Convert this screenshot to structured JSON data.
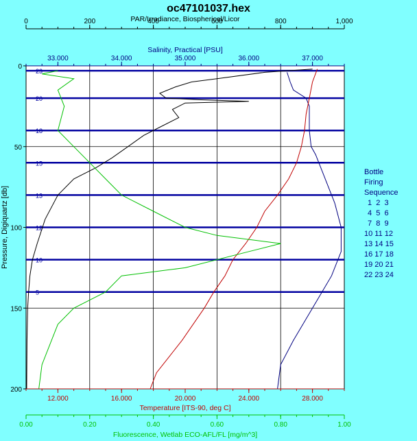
{
  "chart_data": {
    "type": "line",
    "title": "oc47101037.hex",
    "y_axis": {
      "label": "Pressure, Digiquartz [db]",
      "min": 0,
      "max": 200,
      "ticks": [
        "0",
        "50",
        "100",
        "150",
        "200"
      ],
      "inverted": true
    },
    "x_axes": [
      {
        "position": "top-1",
        "label": "PAR/Irradiance, Biospherical/Licor",
        "color": "#000000",
        "min": 0,
        "max": 1000,
        "ticks": [
          "0",
          "200",
          "400",
          "600",
          "800",
          "1,000"
        ]
      },
      {
        "position": "top-2",
        "label": "Salinity, Practical [PSU]",
        "color": "#000080",
        "min": 32.5,
        "max": 37.5,
        "ticks": [
          "33.000",
          "34.000",
          "35.000",
          "36.000",
          "37.000"
        ]
      },
      {
        "position": "bottom-1",
        "label": "Temperature [ITS-90, deg C]",
        "color": "#c00000",
        "min": 10,
        "max": 30,
        "ticks": [
          "12.000",
          "16.000",
          "20.000",
          "24.000",
          "28.000"
        ]
      },
      {
        "position": "bottom-2",
        "label": "Fluorescence, Wetlab ECO-AFL/FL [mg/m^3]",
        "color": "#00c000",
        "min": 0,
        "max": 1.0,
        "ticks": [
          "0.00",
          "0.20",
          "0.40",
          "0.60",
          "0.80",
          "1.00"
        ]
      }
    ],
    "series": [
      {
        "name": "PAR/Irradiance",
        "color": "#000000",
        "points": [
          [
            900,
            2
          ],
          [
            750,
            4
          ],
          [
            600,
            8
          ],
          [
            520,
            10
          ],
          [
            470,
            13
          ],
          [
            420,
            17
          ],
          [
            440,
            20
          ],
          [
            550,
            21
          ],
          [
            700,
            22
          ],
          [
            500,
            23
          ],
          [
            460,
            27
          ],
          [
            480,
            32
          ],
          [
            420,
            38
          ],
          [
            370,
            43
          ],
          [
            320,
            50
          ],
          [
            270,
            57
          ],
          [
            220,
            63
          ],
          [
            150,
            70
          ],
          [
            100,
            80
          ],
          [
            60,
            95
          ],
          [
            35,
            110
          ],
          [
            20,
            120
          ],
          [
            12,
            130
          ],
          [
            8,
            140
          ],
          [
            5,
            150
          ],
          [
            3,
            170
          ],
          [
            2,
            200
          ]
        ]
      },
      {
        "name": "Salinity",
        "color": "#000080",
        "points": [
          [
            36.6,
            4
          ],
          [
            36.65,
            10
          ],
          [
            36.7,
            15
          ],
          [
            36.9,
            20
          ],
          [
            36.95,
            25
          ],
          [
            36.95,
            40
          ],
          [
            36.98,
            50
          ],
          [
            37.05,
            55
          ],
          [
            37.1,
            60
          ],
          [
            37.2,
            70
          ],
          [
            37.35,
            85
          ],
          [
            37.45,
            100
          ],
          [
            37.45,
            115
          ],
          [
            37.4,
            120
          ],
          [
            37.3,
            130
          ],
          [
            37.15,
            140
          ],
          [
            37.0,
            150
          ],
          [
            36.85,
            160
          ],
          [
            36.7,
            170
          ],
          [
            36.5,
            185
          ],
          [
            36.45,
            200
          ]
        ]
      },
      {
        "name": "Temperature",
        "color": "#c00000",
        "points": [
          [
            28.3,
            2
          ],
          [
            28.0,
            10
          ],
          [
            27.8,
            20
          ],
          [
            27.6,
            30
          ],
          [
            27.5,
            40
          ],
          [
            27.3,
            50
          ],
          [
            27.0,
            60
          ],
          [
            26.5,
            70
          ],
          [
            25.8,
            80
          ],
          [
            25.0,
            90
          ],
          [
            24.5,
            100
          ],
          [
            23.8,
            110
          ],
          [
            23.0,
            120
          ],
          [
            22.5,
            130
          ],
          [
            21.8,
            140
          ],
          [
            21.2,
            150
          ],
          [
            20.5,
            160
          ],
          [
            19.8,
            170
          ],
          [
            19.0,
            180
          ],
          [
            18.2,
            190
          ],
          [
            17.8,
            200
          ]
        ]
      },
      {
        "name": "Fluorescence",
        "color": "#00c000",
        "points": [
          [
            0.1,
            3
          ],
          [
            0.05,
            5
          ],
          [
            0.15,
            8
          ],
          [
            0.1,
            15
          ],
          [
            0.12,
            25
          ],
          [
            0.1,
            40
          ],
          [
            0.15,
            50
          ],
          [
            0.2,
            60
          ],
          [
            0.25,
            70
          ],
          [
            0.3,
            80
          ],
          [
            0.4,
            90
          ],
          [
            0.5,
            100
          ],
          [
            0.6,
            105
          ],
          [
            0.8,
            110
          ],
          [
            0.7,
            115
          ],
          [
            0.5,
            125
          ],
          [
            0.3,
            130
          ],
          [
            0.25,
            140
          ],
          [
            0.15,
            150
          ],
          [
            0.1,
            160
          ],
          [
            0.08,
            170
          ],
          [
            0.05,
            185
          ],
          [
            0.04,
            200
          ]
        ]
      }
    ],
    "bottle_lines": [
      {
        "label": "23",
        "pressure": 3
      },
      {
        "label": "20",
        "pressure": 20
      },
      {
        "label": "18",
        "pressure": 40
      },
      {
        "label": "15",
        "pressure": 60
      },
      {
        "label": "13",
        "pressure": 80
      },
      {
        "label": "12",
        "pressure": 100
      },
      {
        "label": "10",
        "pressure": 120
      },
      {
        "label": "5",
        "pressure": 140
      }
    ],
    "grid": true
  },
  "legend": {
    "title_lines": [
      "Bottle",
      "Firing",
      "Sequence"
    ],
    "rows": [
      "1  2  3",
      "4  5  6",
      "7  8  9",
      "10 11 12",
      "13 14 15",
      "16 17 18",
      "19 20 21",
      "22 23 24"
    ]
  }
}
